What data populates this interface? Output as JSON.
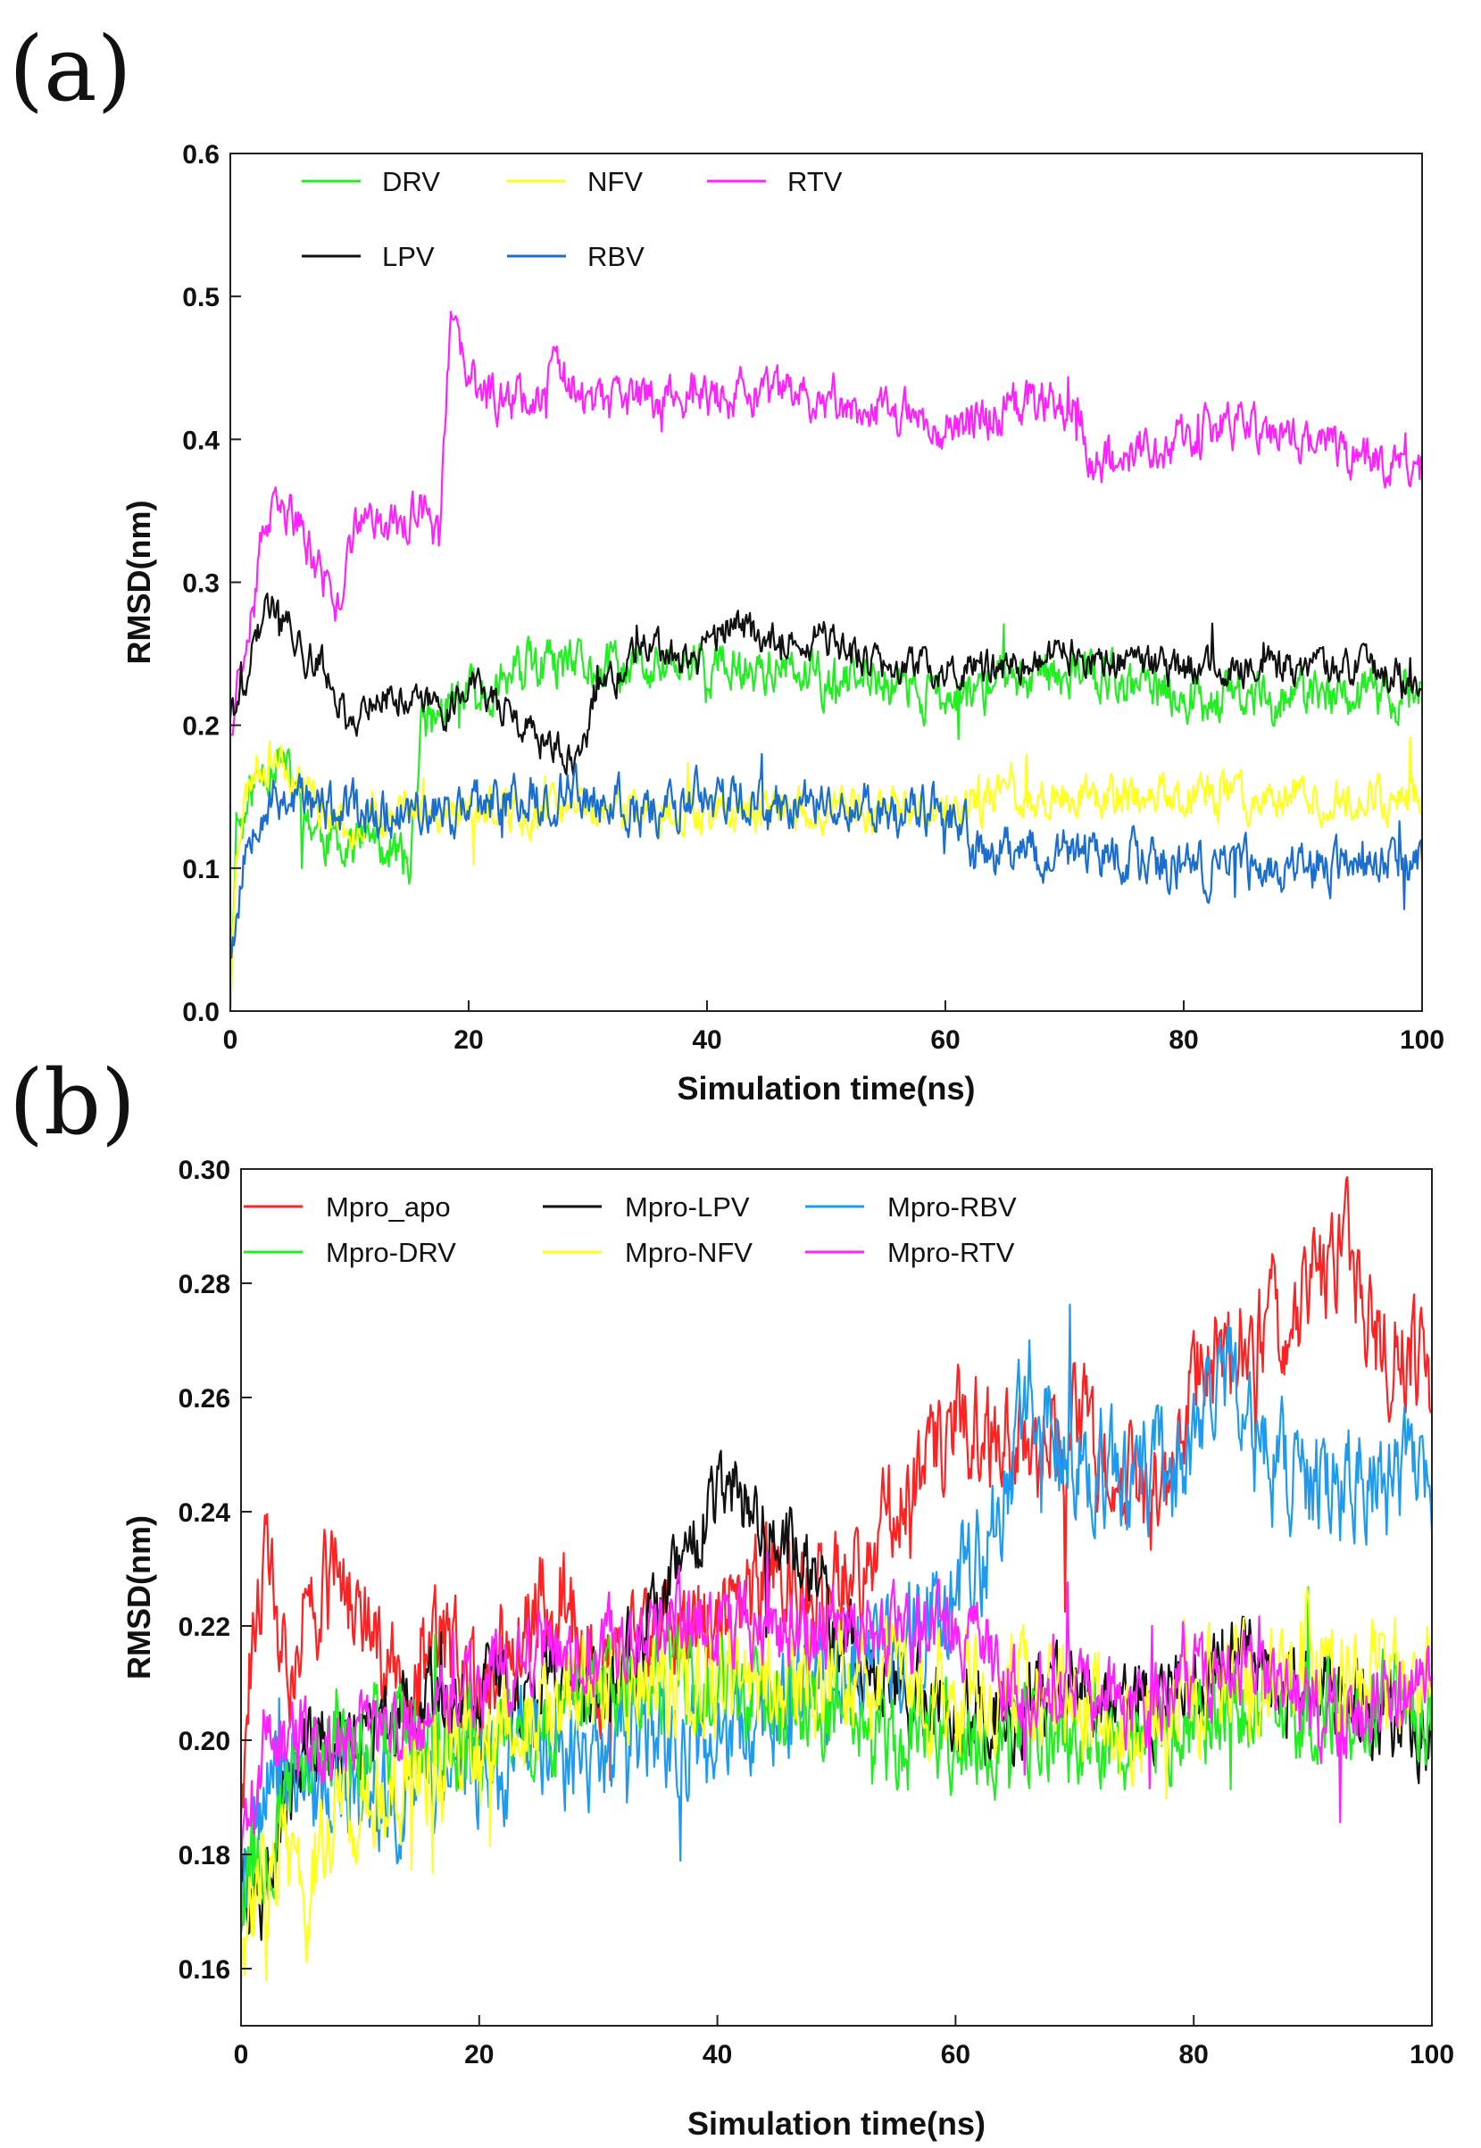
{
  "chart_data": [
    {
      "panel": "(a)",
      "type": "line",
      "xlabel": "Simulation time(ns)",
      "ylabel": "RMSD(nm)",
      "xlim": [
        0,
        100
      ],
      "ylim": [
        0.0,
        0.6
      ],
      "xticks": [
        "0",
        "20",
        "40",
        "60",
        "80",
        "100"
      ],
      "yticks": [
        "0.0",
        "0.1",
        "0.2",
        "0.3",
        "0.4",
        "0.5",
        "0.6"
      ],
      "grid": false,
      "legend_position": "top-left",
      "series": [
        {
          "name": "DRV",
          "color": "#22ee22",
          "noise": 0.014,
          "seed": 11,
          "x": [
            0,
            0.5,
            1,
            2,
            3,
            4,
            5,
            6,
            8,
            10,
            12,
            14,
            15,
            16,
            18,
            20,
            25,
            30,
            35,
            40,
            45,
            50,
            55,
            60,
            65,
            70,
            75,
            80,
            85,
            90,
            95,
            100
          ],
          "y": [
            0.0,
            0.14,
            0.13,
            0.16,
            0.17,
            0.18,
            0.16,
            0.14,
            0.12,
            0.12,
            0.12,
            0.11,
            0.1,
            0.2,
            0.21,
            0.22,
            0.24,
            0.24,
            0.24,
            0.24,
            0.24,
            0.23,
            0.23,
            0.22,
            0.23,
            0.24,
            0.23,
            0.22,
            0.22,
            0.22,
            0.22,
            0.22
          ]
        },
        {
          "name": "NFV",
          "color": "#ffff22",
          "noise": 0.012,
          "seed": 23,
          "x": [
            0,
            0.5,
            1,
            2,
            4,
            6,
            8,
            10,
            15,
            20,
            25,
            30,
            35,
            40,
            45,
            50,
            55,
            60,
            65,
            70,
            75,
            80,
            85,
            90,
            95,
            100
          ],
          "y": [
            0.0,
            0.12,
            0.14,
            0.17,
            0.18,
            0.16,
            0.14,
            0.13,
            0.14,
            0.14,
            0.14,
            0.14,
            0.14,
            0.14,
            0.14,
            0.14,
            0.14,
            0.14,
            0.15,
            0.15,
            0.15,
            0.15,
            0.15,
            0.15,
            0.15,
            0.15
          ]
        },
        {
          "name": "RTV",
          "color": "#ff22ff",
          "noise": 0.013,
          "seed": 37,
          "x": [
            0,
            0.5,
            1,
            2,
            3,
            5,
            8,
            9,
            10,
            12,
            14,
            16,
            17.5,
            18.5,
            20,
            22,
            25,
            28,
            30,
            35,
            40,
            45,
            50,
            55,
            60,
            65,
            68,
            71.5,
            72,
            75,
            80,
            85,
            90,
            95,
            100
          ],
          "y": [
            0.2,
            0.23,
            0.25,
            0.3,
            0.34,
            0.35,
            0.3,
            0.28,
            0.33,
            0.35,
            0.34,
            0.35,
            0.33,
            0.48,
            0.44,
            0.43,
            0.43,
            0.45,
            0.42,
            0.43,
            0.43,
            0.43,
            0.43,
            0.42,
            0.41,
            0.42,
            0.43,
            0.42,
            0.38,
            0.39,
            0.4,
            0.41,
            0.4,
            0.39,
            0.38
          ]
        },
        {
          "name": "LPV",
          "color": "#111111",
          "noise": 0.01,
          "seed": 41,
          "x": [
            0,
            1,
            2,
            3,
            4,
            5,
            6,
            8,
            10,
            12,
            15,
            18,
            20,
            22,
            24,
            26,
            28,
            29.5,
            30.5,
            32,
            34,
            38,
            42,
            45,
            50,
            52,
            55,
            60,
            65,
            70,
            75,
            80,
            85,
            90,
            95,
            100
          ],
          "y": [
            0.21,
            0.22,
            0.26,
            0.28,
            0.28,
            0.27,
            0.25,
            0.24,
            0.2,
            0.22,
            0.22,
            0.21,
            0.23,
            0.22,
            0.2,
            0.19,
            0.18,
            0.17,
            0.22,
            0.23,
            0.25,
            0.25,
            0.27,
            0.26,
            0.26,
            0.25,
            0.24,
            0.24,
            0.24,
            0.25,
            0.24,
            0.24,
            0.24,
            0.24,
            0.24,
            0.23
          ]
        },
        {
          "name": "RBV",
          "color": "#1a6ecf",
          "noise": 0.014,
          "seed": 53,
          "x": [
            0,
            0.5,
            1,
            2,
            4,
            6,
            8,
            10,
            15,
            20,
            25,
            30,
            35,
            40,
            45,
            50,
            55,
            60,
            61.5,
            62.5,
            65,
            70,
            75,
            80,
            85,
            90,
            95,
            100
          ],
          "y": [
            0.05,
            0.06,
            0.1,
            0.14,
            0.15,
            0.15,
            0.14,
            0.14,
            0.14,
            0.14,
            0.15,
            0.15,
            0.14,
            0.15,
            0.14,
            0.15,
            0.14,
            0.14,
            0.13,
            0.11,
            0.11,
            0.11,
            0.11,
            0.1,
            0.1,
            0.1,
            0.1,
            0.11
          ]
        }
      ]
    },
    {
      "panel": "(b)",
      "type": "line",
      "xlabel": "Simulation time(ns)",
      "ylabel": "RMSD(nm)",
      "xlim": [
        0,
        100
      ],
      "ylim": [
        0.15,
        0.3
      ],
      "xticks": [
        "0",
        "20",
        "40",
        "60",
        "80",
        "100"
      ],
      "yticks": [
        "0.16",
        "0.18",
        "0.20",
        "0.22",
        "0.24",
        "0.26",
        "0.28",
        "0.30"
      ],
      "grid": false,
      "legend_position": "top-left",
      "series": [
        {
          "name": "Mpro_apo",
          "color": "#ff2222",
          "noise": 0.008,
          "seed": 61,
          "x": [
            0,
            1,
            2,
            4,
            6,
            8,
            10,
            14,
            18,
            20,
            24,
            27,
            30,
            35,
            40,
            45,
            50,
            55,
            58,
            60,
            65,
            70,
            75,
            78,
            80,
            85,
            88,
            90,
            93,
            95,
            98,
            100
          ],
          "y": [
            0.19,
            0.22,
            0.23,
            0.21,
            0.22,
            0.23,
            0.22,
            0.21,
            0.215,
            0.21,
            0.22,
            0.225,
            0.21,
            0.22,
            0.22,
            0.23,
            0.225,
            0.24,
            0.25,
            0.255,
            0.25,
            0.255,
            0.245,
            0.24,
            0.265,
            0.27,
            0.275,
            0.28,
            0.285,
            0.27,
            0.27,
            0.26
          ]
        },
        {
          "name": "Mpro-LPV",
          "color": "#111111",
          "noise": 0.006,
          "seed": 67,
          "x": [
            0,
            1,
            2,
            4,
            6,
            8,
            10,
            15,
            20,
            25,
            30,
            35,
            38,
            40,
            42,
            45,
            48,
            50,
            55,
            60,
            65,
            70,
            75,
            80,
            85,
            90,
            95,
            100
          ],
          "y": [
            0.18,
            0.17,
            0.18,
            0.19,
            0.2,
            0.2,
            0.2,
            0.205,
            0.21,
            0.21,
            0.21,
            0.22,
            0.235,
            0.24,
            0.245,
            0.235,
            0.23,
            0.22,
            0.21,
            0.205,
            0.205,
            0.21,
            0.205,
            0.21,
            0.215,
            0.21,
            0.205,
            0.2
          ]
        },
        {
          "name": "Mpro-RBV",
          "color": "#1e9bef",
          "noise": 0.008,
          "seed": 71,
          "x": [
            0,
            1,
            2,
            4,
            6,
            8,
            10,
            15,
            20,
            25,
            30,
            35,
            40,
            45,
            50,
            55,
            60,
            63,
            66.5,
            68,
            70,
            75,
            80,
            84,
            85,
            90,
            95,
            100
          ],
          "y": [
            0.17,
            0.18,
            0.19,
            0.2,
            0.19,
            0.19,
            0.19,
            0.19,
            0.195,
            0.2,
            0.2,
            0.2,
            0.2,
            0.205,
            0.21,
            0.215,
            0.225,
            0.235,
            0.265,
            0.255,
            0.25,
            0.245,
            0.25,
            0.265,
            0.25,
            0.245,
            0.245,
            0.245
          ]
        },
        {
          "name": "Mpro-DRV",
          "color": "#22ee22",
          "noise": 0.007,
          "seed": 79,
          "x": [
            0,
            1,
            2,
            4,
            6,
            8,
            10,
            15,
            20,
            25,
            30,
            35,
            40,
            45,
            50,
            55,
            60,
            65,
            70,
            75,
            80,
            85,
            90,
            95,
            100
          ],
          "y": [
            0.17,
            0.18,
            0.18,
            0.19,
            0.2,
            0.2,
            0.2,
            0.2,
            0.2,
            0.2,
            0.21,
            0.21,
            0.21,
            0.205,
            0.205,
            0.2,
            0.2,
            0.2,
            0.2,
            0.2,
            0.205,
            0.205,
            0.205,
            0.205,
            0.205
          ]
        },
        {
          "name": "Mpro-NFV",
          "color": "#ffff22",
          "noise": 0.008,
          "seed": 83,
          "x": [
            0,
            1,
            2,
            4,
            5.5,
            6,
            8,
            10,
            15,
            20,
            25,
            30,
            35,
            40,
            45,
            50,
            55,
            60,
            65,
            70,
            75,
            80,
            85,
            90,
            95,
            100
          ],
          "y": [
            0.16,
            0.17,
            0.18,
            0.18,
            0.17,
            0.18,
            0.185,
            0.19,
            0.195,
            0.2,
            0.205,
            0.21,
            0.21,
            0.21,
            0.21,
            0.21,
            0.21,
            0.21,
            0.21,
            0.205,
            0.205,
            0.21,
            0.21,
            0.215,
            0.21,
            0.21
          ]
        },
        {
          "name": "Mpro-RTV",
          "color": "#ff22ff",
          "noise": 0.006,
          "seed": 89,
          "x": [
            0,
            1,
            2,
            4,
            6,
            8,
            10,
            15,
            20,
            25,
            30,
            35,
            40,
            45,
            50,
            55,
            60,
            65,
            70,
            75,
            80,
            85,
            90,
            95,
            100
          ],
          "y": [
            0.18,
            0.19,
            0.2,
            0.2,
            0.2,
            0.2,
            0.2,
            0.205,
            0.21,
            0.215,
            0.215,
            0.22,
            0.22,
            0.22,
            0.22,
            0.22,
            0.22,
            0.21,
            0.21,
            0.205,
            0.21,
            0.21,
            0.205,
            0.205,
            0.21
          ]
        }
      ]
    }
  ]
}
